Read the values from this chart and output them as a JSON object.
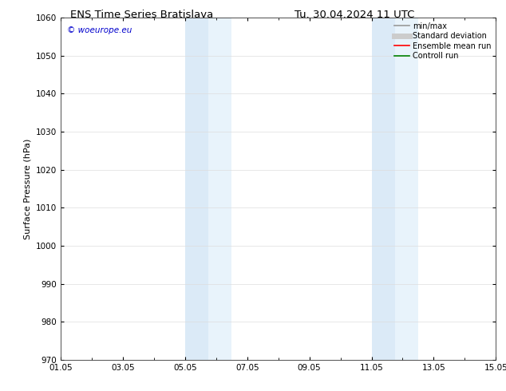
{
  "title_left": "ENS Time Series Bratislava",
  "title_right": "Tu. 30.04.2024 11 UTC",
  "ylabel": "Surface Pressure (hPa)",
  "ylim": [
    970,
    1060
  ],
  "yticks": [
    970,
    980,
    990,
    1000,
    1010,
    1020,
    1030,
    1040,
    1050,
    1060
  ],
  "x_min": 0,
  "x_max": 14,
  "xtick_labels": [
    "01.05",
    "03.05",
    "05.05",
    "07.05",
    "09.05",
    "11.05",
    "13.05",
    "15.05"
  ],
  "xtick_positions": [
    0,
    2,
    4,
    6,
    8,
    10,
    12,
    14
  ],
  "shaded_bands": [
    {
      "x_start": 4.0,
      "x_end": 4.75,
      "color": "#dbeaf7"
    },
    {
      "x_start": 4.75,
      "x_end": 5.5,
      "color": "#e8f3fb"
    },
    {
      "x_start": 10.0,
      "x_end": 10.75,
      "color": "#dbeaf7"
    },
    {
      "x_start": 10.75,
      "x_end": 11.5,
      "color": "#e8f3fb"
    }
  ],
  "legend_items": [
    {
      "label": "min/max",
      "color": "#999999",
      "lw": 1.2
    },
    {
      "label": "Standard deviation",
      "color": "#cccccc",
      "lw": 5
    },
    {
      "label": "Ensemble mean run",
      "color": "#ff0000",
      "lw": 1.2
    },
    {
      "label": "Controll run",
      "color": "#008000",
      "lw": 1.2
    }
  ],
  "watermark_text": "© woeurope.eu",
  "watermark_color": "#0000cc",
  "bg_color": "#ffffff",
  "title_fontsize": 9.5,
  "axis_label_fontsize": 8,
  "tick_fontsize": 7.5,
  "legend_fontsize": 7
}
